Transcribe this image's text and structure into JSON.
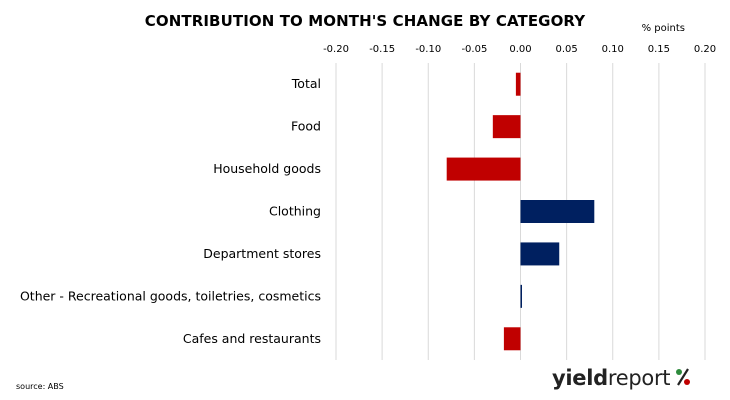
{
  "title": "CONTRIBUTION TO MONTH'S CHANGE BY CATEGORY",
  "unit": "% points",
  "source": "source: ABS",
  "logo": {
    "part1": "yield",
    "part2": "report",
    "symbol": "%"
  },
  "colors": {
    "negative": "#c00000",
    "positive": "#002060",
    "grid": "#d9d9d9",
    "logo_green": "#2e8b3c",
    "logo_red": "#c00000"
  },
  "chart_data": {
    "type": "bar",
    "orientation": "horizontal",
    "title": "CONTRIBUTION TO MONTH'S CHANGE BY CATEGORY",
    "xlabel": "% points",
    "xlim": [
      -0.2,
      0.2
    ],
    "tick_labels": [
      "-0.20",
      "-0.15",
      "-0.10",
      "-0.05",
      "0.00",
      "0.05",
      "0.10",
      "0.15",
      "0.20"
    ],
    "categories": [
      "Total",
      "Food",
      "Household goods",
      "Clothing",
      "Department stores",
      "Other - Recreational goods, toiletries, cosmetics",
      "Cafes and restaurants"
    ],
    "values": [
      -0.005,
      -0.03,
      -0.08,
      0.08,
      0.042,
      0.001,
      -0.018
    ],
    "grid": true
  }
}
